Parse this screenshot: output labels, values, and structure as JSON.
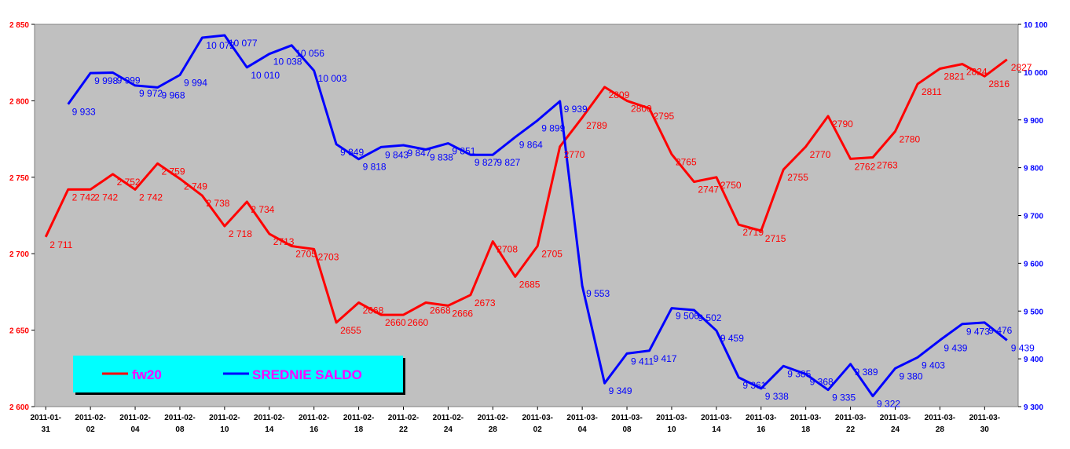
{
  "chart_data": {
    "type": "line",
    "x": [
      "2011-01-31",
      "2011-02-01",
      "2011-02-02",
      "2011-02-03",
      "2011-02-04",
      "2011-02-07",
      "2011-02-08",
      "2011-02-09",
      "2011-02-10",
      "2011-02-11",
      "2011-02-14",
      "2011-02-15",
      "2011-02-16",
      "2011-02-17",
      "2011-02-18",
      "2011-02-21",
      "2011-02-22",
      "2011-02-23",
      "2011-02-24",
      "2011-02-25",
      "2011-02-28",
      "2011-03-01",
      "2011-03-02",
      "2011-03-03",
      "2011-03-04",
      "2011-03-07",
      "2011-03-08",
      "2011-03-09",
      "2011-03-10",
      "2011-03-11",
      "2011-03-14",
      "2011-03-15",
      "2011-03-16",
      "2011-03-17",
      "2011-03-18",
      "2011-03-21",
      "2011-03-22",
      "2011-03-23",
      "2011-03-24",
      "2011-03-25",
      "2011-03-28",
      "2011-03-29",
      "2011-03-30",
      "2011-03-31"
    ],
    "x_tick_labels": [
      [
        "2011-01-",
        "31"
      ],
      [
        "2011-02-",
        "02"
      ],
      [
        "2011-02-",
        "04"
      ],
      [
        "2011-02-",
        "08"
      ],
      [
        "2011-02-",
        "10"
      ],
      [
        "2011-02-",
        "14"
      ],
      [
        "2011-02-",
        "16"
      ],
      [
        "2011-02-",
        "18"
      ],
      [
        "2011-02-",
        "22"
      ],
      [
        "2011-02-",
        "24"
      ],
      [
        "2011-02-",
        "28"
      ],
      [
        "2011-03-",
        "02"
      ],
      [
        "2011-03-",
        "04"
      ],
      [
        "2011-03-",
        "08"
      ],
      [
        "2011-03-",
        "10"
      ],
      [
        "2011-03-",
        "14"
      ],
      [
        "2011-03-",
        "16"
      ],
      [
        "2011-03-",
        "18"
      ],
      [
        "2011-03-",
        "22"
      ],
      [
        "2011-03-",
        "24"
      ],
      [
        "2011-03-",
        "28"
      ],
      [
        "2011-03-",
        "30"
      ]
    ],
    "series": [
      {
        "name": "fw20",
        "axis": "left",
        "color": "#ff0000",
        "values": [
          2711,
          2742,
          2742,
          2752,
          2742,
          2759,
          2749,
          2738,
          2718,
          2734,
          2713,
          2705,
          2703,
          2655,
          2668,
          2660,
          2660,
          2668,
          2666,
          2673,
          2708,
          2685,
          2705,
          2770,
          2789,
          2809,
          2800,
          2795,
          2765,
          2747,
          2750,
          2719,
          2715,
          2755,
          2770,
          2790,
          2762,
          2763,
          2780,
          2811,
          2821,
          2824,
          2816,
          2827
        ],
        "labels": [
          "2 711",
          "2 742",
          "2 742",
          "2 752",
          "2 742",
          "2 759",
          "2 749",
          "2 738",
          "2 718",
          "2 734",
          "2713",
          "2705",
          "2703",
          "2655",
          "2668",
          "2660",
          "2660",
          "2668",
          "2666",
          "2673",
          "2708",
          "2685",
          "2705",
          "2770",
          "2789",
          "2809",
          "2800",
          "2795",
          "2765",
          "2747",
          "2750",
          "2719",
          "2715",
          "2755",
          "2770",
          "2790",
          "2762",
          "2763",
          "2780",
          "2811",
          "2821",
          "2824",
          "2816",
          "2827"
        ]
      },
      {
        "name": "SREDNIE SALDO",
        "axis": "right",
        "color": "#0000ff",
        "values": [
          null,
          9933,
          9998,
          9999,
          9972,
          9968,
          9994,
          10072,
          10077,
          10010,
          10038,
          10056,
          10003,
          9849,
          9818,
          9843,
          9847,
          9838,
          9851,
          9827,
          9827,
          9864,
          9899,
          9939,
          9553,
          9349,
          9411,
          9417,
          9506,
          9502,
          9459,
          9361,
          9338,
          9385,
          9368,
          9335,
          9389,
          9322,
          9380,
          9403,
          9439,
          9473,
          9476,
          9439
        ],
        "labels": [
          null,
          "9 933",
          "9 998",
          "9 999",
          "9 972",
          "9 968",
          "9 994",
          "10 072",
          "10 077",
          "10 010",
          "10 038",
          "10 056",
          "10 003",
          "9 849",
          "9 818",
          "9 843",
          "9 847",
          "9 838",
          "9 851",
          "9 827",
          "9 827",
          "9 864",
          "9 899",
          "9 939",
          "9 553",
          "9 349",
          "9 411",
          "9 417",
          "9 506",
          "9 502",
          "9 459",
          "9 361",
          "9 338",
          "9 385",
          "9 368",
          "9 335",
          "9 389",
          "9 322",
          "9 380",
          "9 403",
          "9 439",
          "9 473",
          "9 476",
          "9 439"
        ]
      }
    ],
    "y_left": {
      "min": 2600,
      "max": 2850,
      "ticks": [
        "2 600",
        "2 650",
        "2 700",
        "2 750",
        "2 800",
        "2 850"
      ]
    },
    "y_right": {
      "min": 9300,
      "max": 10100,
      "ticks": [
        "9 300",
        "9 400",
        "9 500",
        "9 600",
        "9 700",
        "9 800",
        "9 900",
        "10 000",
        "10 100"
      ]
    },
    "grid": false,
    "legend_placement": "bottom-left",
    "plot_background": "#c0c0c0",
    "legend_background": "#00ffff",
    "legend_text_color": "#ff00ff"
  }
}
